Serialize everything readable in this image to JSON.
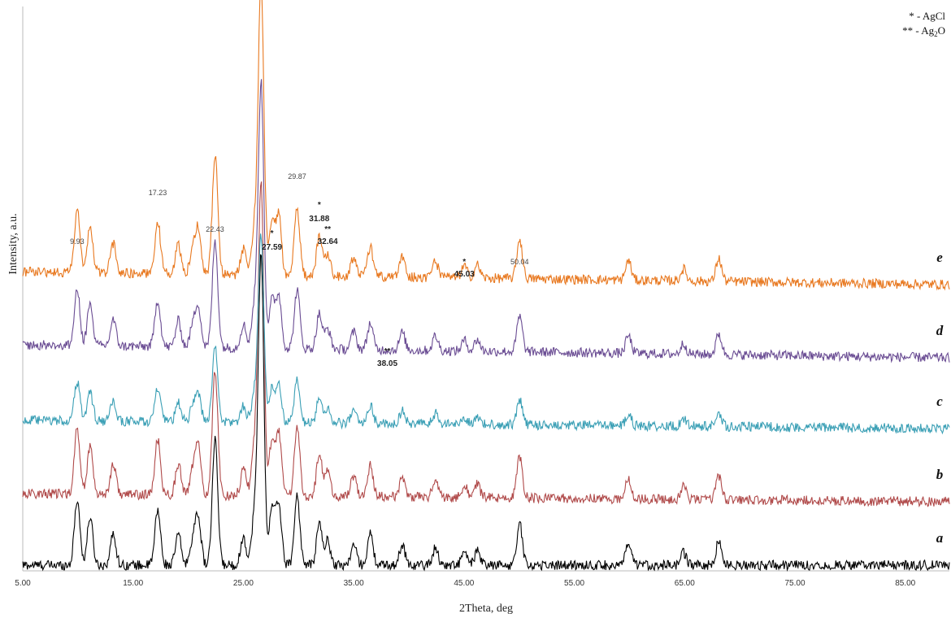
{
  "chart_data": {
    "type": "line",
    "xlabel": "2Theta, deg",
    "ylabel": "Intensity, a.u.",
    "xlim": [
      5,
      89
    ],
    "x_ticks": [
      "5.00",
      "15.00",
      "25.00",
      "35.00",
      "45.00",
      "55.00",
      "65.00",
      "75.00",
      "85.00"
    ],
    "x_tick_values": [
      5,
      15,
      25,
      35,
      45,
      55,
      65,
      75,
      85
    ],
    "legend": [
      {
        "symbol": "*",
        "text": "- AgCl"
      },
      {
        "symbol": "**",
        "text": "- Ag",
        "sub": "2",
        "tail": "O"
      }
    ],
    "series": [
      {
        "name": "a",
        "color": "#000000",
        "baseline": 0.0,
        "tilt": 0.0,
        "scale": 1.0
      },
      {
        "name": "b",
        "color": "#b04a4a",
        "baseline": 0.78,
        "tilt": 0.1,
        "scale": 1.0
      },
      {
        "name": "c",
        "color": "#3a9fb5",
        "baseline": 1.68,
        "tilt": 0.1,
        "scale": 0.6
      },
      {
        "name": "d",
        "color": "#6a4c93",
        "baseline": 2.55,
        "tilt": 0.16,
        "scale": 0.85
      },
      {
        "name": "e",
        "color": "#e8781f",
        "baseline": 3.45,
        "tilt": 0.16,
        "scale": 0.95
      }
    ],
    "peaks": [
      {
        "x": 9.93,
        "h": 0.95
      },
      {
        "x": 11.1,
        "h": 0.7
      },
      {
        "x": 13.2,
        "h": 0.45
      },
      {
        "x": 17.23,
        "h": 0.8
      },
      {
        "x": 19.1,
        "h": 0.45
      },
      {
        "x": 20.4,
        "h": 0.35
      },
      {
        "x": 20.9,
        "h": 0.7
      },
      {
        "x": 22.43,
        "h": 1.8
      },
      {
        "x": 25.0,
        "h": 0.4
      },
      {
        "x": 26.0,
        "h": 0.7
      },
      {
        "x": 26.6,
        "h": 4.5
      },
      {
        "x": 27.59,
        "h": 0.8
      },
      {
        "x": 28.2,
        "h": 0.9
      },
      {
        "x": 29.87,
        "h": 1.0
      },
      {
        "x": 31.88,
        "h": 0.6
      },
      {
        "x": 32.64,
        "h": 0.35
      },
      {
        "x": 35.0,
        "h": 0.3
      },
      {
        "x": 36.5,
        "h": 0.45
      },
      {
        "x": 39.4,
        "h": 0.3
      },
      {
        "x": 42.4,
        "h": 0.25
      },
      {
        "x": 45.03,
        "h": 0.18
      },
      {
        "x": 46.2,
        "h": 0.2
      },
      {
        "x": 50.04,
        "h": 0.6
      },
      {
        "x": 59.9,
        "h": 0.3
      },
      {
        "x": 64.9,
        "h": 0.18
      },
      {
        "x": 68.1,
        "h": 0.35
      }
    ],
    "peak_labels": [
      {
        "x": 9.93,
        "y": 3.95,
        "text": "9.93",
        "style": "small"
      },
      {
        "x": 17.23,
        "y": 4.55,
        "text": "17.23",
        "style": "small"
      },
      {
        "x": 22.43,
        "y": 4.1,
        "text": "22.43",
        "style": "small"
      },
      {
        "x": 27.59,
        "y": 4.05,
        "text": "*",
        "style": "mark"
      },
      {
        "x": 27.59,
        "y": 3.88,
        "text": "27.59",
        "style": "bold"
      },
      {
        "x": 29.87,
        "y": 4.75,
        "text": "29.87",
        "style": "small"
      },
      {
        "x": 31.88,
        "y": 4.4,
        "text": "*",
        "style": "mark"
      },
      {
        "x": 31.88,
        "y": 4.23,
        "text": "31.88",
        "style": "bold"
      },
      {
        "x": 32.64,
        "y": 4.1,
        "text": "**",
        "style": "mark"
      },
      {
        "x": 32.64,
        "y": 3.95,
        "text": "32.64",
        "style": "bold"
      },
      {
        "x": 45.03,
        "y": 3.7,
        "text": "*",
        "style": "mark"
      },
      {
        "x": 45.03,
        "y": 3.55,
        "text": "45.03",
        "style": "bold"
      },
      {
        "x": 50.04,
        "y": 3.7,
        "text": "50.04",
        "style": "small"
      },
      {
        "x": 38.05,
        "y": 2.6,
        "text": "**",
        "style": "mark"
      },
      {
        "x": 38.05,
        "y": 2.45,
        "text": "38.05",
        "style": "bold"
      }
    ]
  }
}
